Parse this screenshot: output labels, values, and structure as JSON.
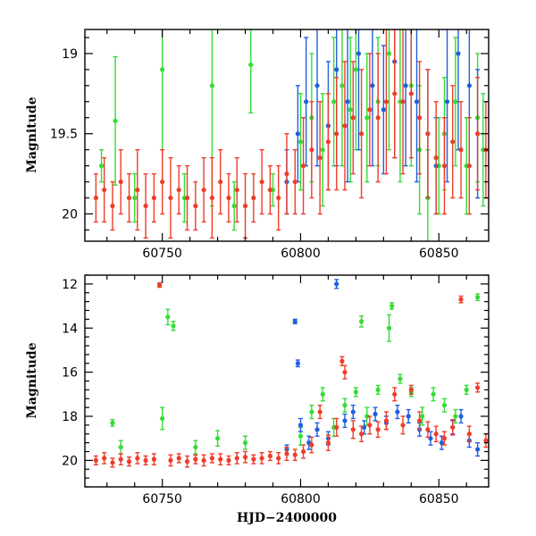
{
  "chart_data": [
    {
      "panel": "top",
      "type": "scatter",
      "xlabel": "",
      "ylabel": "Magnitude",
      "y_inverted": true,
      "xlim": [
        60722,
        60868
      ],
      "ylim": [
        20.17,
        18.85
      ],
      "xticks": [
        60750,
        60800,
        60850
      ],
      "yticks": [
        19,
        19.5,
        20
      ],
      "ytick_labels": [
        "19",
        "19.5",
        "20"
      ],
      "series": [
        {
          "color": "#33dd33",
          "x": [
            60728,
            60733,
            60740,
            60750,
            60758,
            60768,
            60776,
            60782,
            60790,
            60800,
            60804,
            60808,
            60812,
            60815,
            60818,
            60820,
            60824,
            60828,
            60832,
            60836,
            60840,
            60843,
            60846,
            60850,
            60852,
            60856,
            60860,
            60864,
            60866
          ],
          "y": [
            19.7,
            19.42,
            19.9,
            19.1,
            19.9,
            19.2,
            19.95,
            19.07,
            19.85,
            19.55,
            19.4,
            19.6,
            19.3,
            19.2,
            19.35,
            19.1,
            19.4,
            19.3,
            19.0,
            19.3,
            19.2,
            19.6,
            19.9,
            19.7,
            19.5,
            19.3,
            19.7,
            19.4,
            19.6
          ],
          "err": [
            0.1,
            0.4,
            0.15,
            0.7,
            0.15,
            0.75,
            0.15,
            0.3,
            0.1,
            0.3,
            0.4,
            0.35,
            0.4,
            0.5,
            0.45,
            0.5,
            0.4,
            0.4,
            0.6,
            0.5,
            0.5,
            0.4,
            0.3,
            0.3,
            0.35,
            0.4,
            0.3,
            0.4,
            0.35
          ]
        },
        {
          "color": "#1f5fe0",
          "x": [
            60795,
            60799,
            60802,
            60806,
            60810,
            60813,
            60817,
            60821,
            60826,
            60830,
            60834,
            60838,
            60842,
            60846,
            60849,
            60853,
            60857,
            60861,
            60864
          ],
          "y": [
            19.8,
            19.5,
            19.3,
            19.2,
            19.45,
            19.1,
            19.3,
            19.0,
            19.2,
            19.35,
            19.05,
            19.2,
            19.3,
            19.5,
            19.7,
            19.3,
            19.0,
            19.2,
            19.5
          ],
          "err": [
            0.2,
            0.3,
            0.4,
            0.5,
            0.4,
            0.6,
            0.5,
            0.6,
            0.5,
            0.4,
            0.6,
            0.5,
            0.5,
            0.4,
            0.3,
            0.5,
            0.6,
            0.5,
            0.4
          ]
        },
        {
          "color": "#f03c28",
          "x": [
            60726,
            60729,
            60732,
            60735,
            60738,
            60741,
            60744,
            60747,
            60750,
            60753,
            60756,
            60759,
            60762,
            60765,
            60768,
            60771,
            60774,
            60777,
            60780,
            60783,
            60786,
            60789,
            60792,
            60795,
            60798,
            60801,
            60804,
            60807,
            60810,
            60813,
            60816,
            60819,
            60822,
            60825,
            60828,
            60831,
            60834,
            60837,
            60840,
            60843,
            60846,
            60849,
            60852,
            60855,
            60858,
            60861,
            60864,
            60867
          ],
          "y": [
            19.9,
            19.85,
            19.95,
            19.8,
            19.9,
            19.85,
            19.95,
            19.9,
            19.8,
            19.9,
            19.85,
            19.9,
            19.95,
            19.85,
            19.9,
            19.8,
            19.9,
            19.85,
            19.95,
            19.9,
            19.8,
            19.85,
            19.9,
            19.75,
            19.8,
            19.7,
            19.6,
            19.65,
            19.55,
            19.5,
            19.45,
            19.4,
            19.5,
            19.35,
            19.4,
            19.3,
            19.25,
            19.3,
            19.25,
            19.4,
            19.5,
            19.65,
            19.7,
            19.55,
            19.6,
            19.7,
            19.5,
            19.6
          ],
          "err": [
            0.15,
            0.2,
            0.15,
            0.2,
            0.15,
            0.25,
            0.2,
            0.15,
            0.2,
            0.25,
            0.15,
            0.2,
            0.15,
            0.2,
            0.25,
            0.2,
            0.15,
            0.2,
            0.2,
            0.15,
            0.2,
            0.15,
            0.2,
            0.25,
            0.2,
            0.3,
            0.3,
            0.35,
            0.3,
            0.35,
            0.4,
            0.35,
            0.4,
            0.35,
            0.4,
            0.45,
            0.4,
            0.45,
            0.4,
            0.35,
            0.4,
            0.35,
            0.3,
            0.35,
            0.3,
            0.3,
            0.35,
            0.3
          ]
        }
      ]
    },
    {
      "panel": "bottom",
      "type": "scatter",
      "xlabel": "HJD−2400000",
      "ylabel": "Magnitude",
      "y_inverted": true,
      "xlim": [
        60722,
        60868
      ],
      "ylim": [
        21.2,
        11.6
      ],
      "xticks": [
        60750,
        60800,
        60850
      ],
      "yticks": [
        12,
        14,
        16,
        18,
        20
      ],
      "ytick_labels": [
        "12",
        "14",
        "16",
        "18",
        "20"
      ],
      "series": [
        {
          "color": "#33dd33",
          "x": [
            60732,
            60735,
            60750,
            60752,
            60754,
            60762,
            60770,
            60780,
            60800,
            60804,
            60808,
            60812,
            60816,
            60820,
            60822,
            60824,
            60828,
            60832,
            60833,
            60836,
            60840,
            60844,
            60848,
            60852,
            60856,
            60860,
            60864
          ],
          "y": [
            18.3,
            19.4,
            18.1,
            13.5,
            13.9,
            19.4,
            19.0,
            19.2,
            18.9,
            17.8,
            17.0,
            18.5,
            17.5,
            16.9,
            13.7,
            18.0,
            16.8,
            14.0,
            13.0,
            16.3,
            16.9,
            18.0,
            17.0,
            17.5,
            18.0,
            16.8,
            12.6
          ],
          "err": [
            0.15,
            0.3,
            0.5,
            0.35,
            0.2,
            0.3,
            0.35,
            0.3,
            0.4,
            0.3,
            0.3,
            0.4,
            0.3,
            0.2,
            0.25,
            0.4,
            0.2,
            0.6,
            0.15,
            0.2,
            0.2,
            0.4,
            0.3,
            0.3,
            0.3,
            0.2,
            0.15
          ]
        },
        {
          "color": "#1f5fe0",
          "x": [
            60795,
            60798,
            60799,
            60800,
            60803,
            60806,
            60810,
            60813,
            60816,
            60819,
            60823,
            60827,
            60831,
            60835,
            60839,
            60843,
            60847,
            60851,
            60855,
            60858,
            60861,
            60864
          ],
          "y": [
            19.5,
            13.7,
            15.6,
            18.4,
            19.2,
            18.6,
            19.0,
            12.0,
            18.2,
            17.8,
            18.5,
            17.9,
            18.3,
            17.8,
            18.0,
            18.6,
            19.0,
            19.2,
            18.5,
            18.0,
            19.1,
            19.5
          ],
          "err": [
            0.2,
            0.1,
            0.15,
            0.3,
            0.3,
            0.3,
            0.3,
            0.2,
            0.3,
            0.3,
            0.3,
            0.3,
            0.3,
            0.3,
            0.3,
            0.3,
            0.3,
            0.3,
            0.3,
            0.3,
            0.3,
            0.3
          ]
        },
        {
          "color": "#f03c28",
          "x": [
            60726,
            60729,
            60732,
            60735,
            60738,
            60741,
            60744,
            60747,
            60749,
            60753,
            60756,
            60759,
            60762,
            60765,
            60768,
            60771,
            60774,
            60777,
            60780,
            60783,
            60786,
            60789,
            60792,
            60795,
            60798,
            60801,
            60804,
            60807,
            60810,
            60813,
            60815,
            60816,
            60819,
            60822,
            60825,
            60828,
            60831,
            60834,
            60837,
            60840,
            60843,
            60846,
            60849,
            60852,
            60855,
            60858,
            60861,
            60864,
            60867
          ],
          "y": [
            20.0,
            19.9,
            20.1,
            19.95,
            20.05,
            19.9,
            20.0,
            19.95,
            12.05,
            20.0,
            19.9,
            20.05,
            19.95,
            20.0,
            19.9,
            19.95,
            20.0,
            19.9,
            19.85,
            19.95,
            19.9,
            19.8,
            19.9,
            19.7,
            19.75,
            19.6,
            19.3,
            17.8,
            19.2,
            18.5,
            15.5,
            16.0,
            18.6,
            18.8,
            18.4,
            18.6,
            18.2,
            17.0,
            18.4,
            16.8,
            18.2,
            18.6,
            18.8,
            19.0,
            18.5,
            12.7,
            18.8,
            16.7,
            19.1
          ],
          "err": [
            0.2,
            0.25,
            0.2,
            0.25,
            0.2,
            0.25,
            0.2,
            0.25,
            0.1,
            0.25,
            0.2,
            0.25,
            0.2,
            0.25,
            0.2,
            0.25,
            0.2,
            0.25,
            0.25,
            0.2,
            0.25,
            0.2,
            0.25,
            0.3,
            0.25,
            0.3,
            0.35,
            0.3,
            0.35,
            0.4,
            0.2,
            0.3,
            0.4,
            0.35,
            0.4,
            0.35,
            0.4,
            0.3,
            0.4,
            0.2,
            0.4,
            0.35,
            0.35,
            0.3,
            0.35,
            0.15,
            0.35,
            0.2,
            0.3
          ]
        }
      ]
    }
  ]
}
